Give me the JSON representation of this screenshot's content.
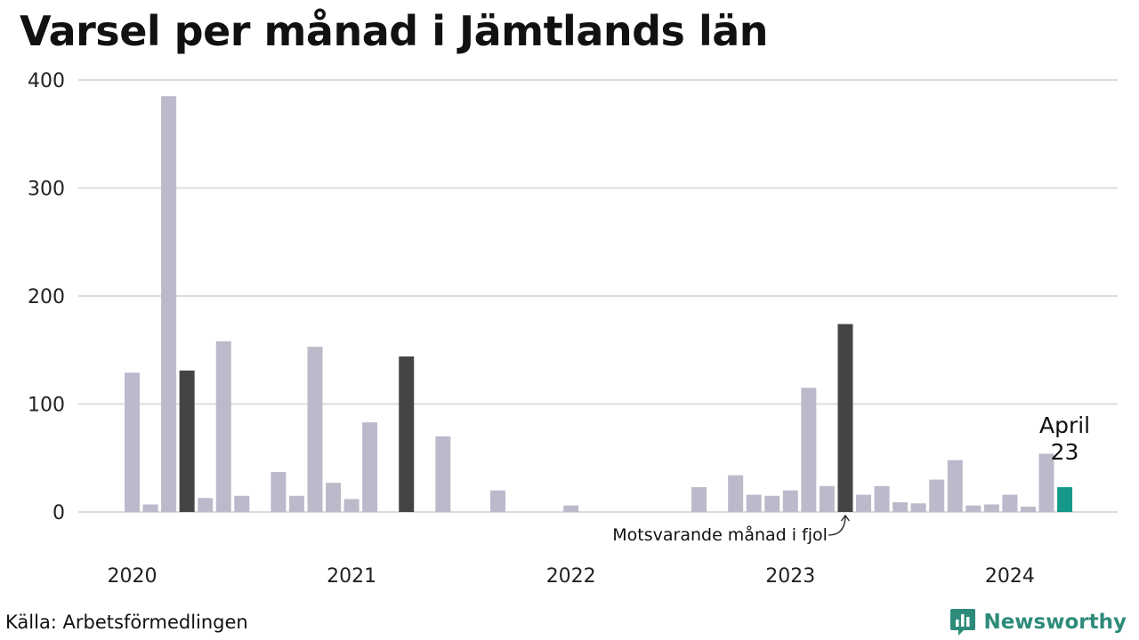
{
  "title": "Varsel per månad i Jämtlands län",
  "source": "Källa: Arbetsförmedlingen",
  "brand": {
    "name": "Newsworthy",
    "icon": "newsworthy-logo-icon",
    "color": "#2e8b7a"
  },
  "colors": {
    "default": "#bcbaca",
    "same_month_last_year": "#444444",
    "current": "#16998a",
    "grid": "#dcdcdc"
  },
  "chart_data": {
    "type": "bar",
    "title": "Varsel per månad i Jämtlands län",
    "xlabel": "",
    "ylabel": "",
    "ylim": [
      0,
      400
    ],
    "yticks": [
      0,
      100,
      200,
      300,
      400
    ],
    "xtick_labels": [
      "2020",
      "2021",
      "2022",
      "2023",
      "2024"
    ],
    "grid": true,
    "categories": [
      "2020-01",
      "2020-02",
      "2020-03",
      "2020-04",
      "2020-05",
      "2020-06",
      "2020-07",
      "2020-08",
      "2020-09",
      "2020-10",
      "2020-11",
      "2020-12",
      "2021-01",
      "2021-02",
      "2021-03",
      "2021-04",
      "2021-05",
      "2021-06",
      "2021-07",
      "2021-08",
      "2021-09",
      "2021-10",
      "2021-11",
      "2021-12",
      "2022-01",
      "2022-02",
      "2022-03",
      "2022-04",
      "2022-05",
      "2022-06",
      "2022-07",
      "2022-08",
      "2022-09",
      "2022-10",
      "2022-11",
      "2022-12",
      "2023-01",
      "2023-02",
      "2023-03",
      "2023-04",
      "2023-05",
      "2023-06",
      "2023-07",
      "2023-08",
      "2023-09",
      "2023-10",
      "2023-11",
      "2023-12",
      "2024-01",
      "2024-02",
      "2024-03",
      "2024-04"
    ],
    "values": [
      129,
      7,
      385,
      131,
      13,
      158,
      15,
      0,
      37,
      15,
      153,
      27,
      12,
      83,
      0,
      144,
      0,
      70,
      0,
      0,
      20,
      0,
      0,
      0,
      6,
      0,
      0,
      0,
      0,
      0,
      0,
      23,
      0,
      34,
      16,
      15,
      20,
      115,
      24,
      174,
      16,
      24,
      9,
      8,
      30,
      48,
      6,
      7,
      16,
      5,
      54,
      23
    ],
    "highlight_dark": [
      "2020-04",
      "2021-04",
      "2023-04"
    ],
    "highlight_current": "2024-04",
    "annotations": {
      "current_month": "April",
      "current_value": "23",
      "same_month_note": "Motsvarande månad i fjol"
    }
  }
}
